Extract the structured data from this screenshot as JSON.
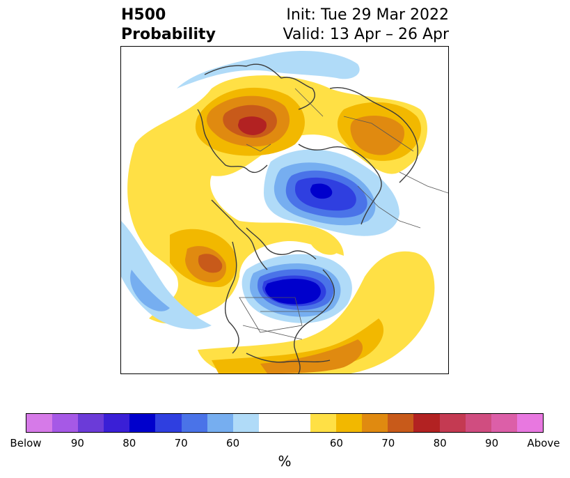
{
  "title": {
    "left_line1": "H500",
    "left_line2": "Probability",
    "init": "Init: Tue 29 Mar 2022",
    "valid": "Valid: 13 Apr – 26 Apr"
  },
  "colorbar": {
    "unit": "%",
    "colors": [
      "#d67ae8",
      "#a659e6",
      "#6b3bd8",
      "#3a1fd6",
      "#0000cc",
      "#2f3fe0",
      "#4a73e8",
      "#76aef0",
      "#b0dbf8",
      "#ffffff",
      "#ffffff",
      "#ffe045",
      "#f2b800",
      "#e08a10",
      "#c85a1a",
      "#b22222",
      "#c43a52",
      "#d04d80",
      "#dc5fa8",
      "#e878e0"
    ],
    "tick_labels": [
      "Below",
      "90",
      "80",
      "70",
      "60",
      "",
      "60",
      "70",
      "80",
      "90",
      "Above"
    ]
  },
  "map": {
    "anomaly_colors": {
      "above_50": "#ffe045",
      "above_60": "#f2b800",
      "above_70": "#e08a10",
      "above_80": "#c85a1a",
      "above_90": "#b22222",
      "below_50": "#b0dbf8",
      "below_60": "#76aef0",
      "below_70": "#4a73e8",
      "below_80": "#2f3fe0",
      "below_90": "#0000cc"
    }
  }
}
